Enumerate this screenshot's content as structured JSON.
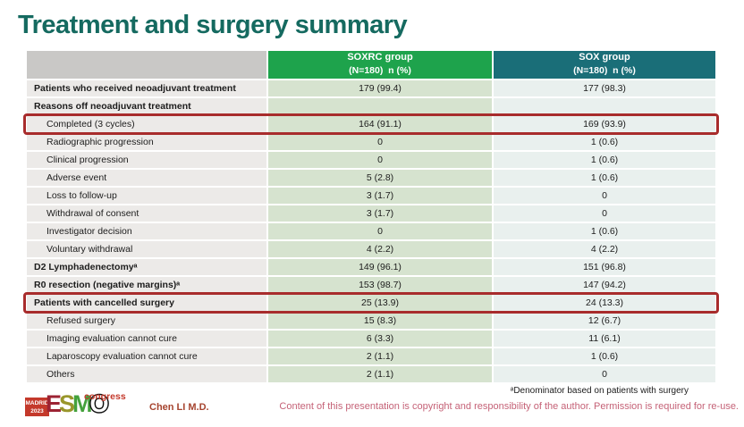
{
  "slide": {
    "title": "Treatment and surgery summary",
    "presenter": "Chen LI M.D.",
    "footnote": "ᵃDenominator based on patients with surgery",
    "copyright": "Content of this presentation is copyright and responsibility of the author. Permission is required for re-use."
  },
  "logo": {
    "badge_line1": "MADRID",
    "badge_line2": "2023",
    "letter_e": "E",
    "letter_s": "S",
    "letter_m": "M",
    "letter_o": "O",
    "congress": "congress"
  },
  "colors": {
    "title": "#156a60",
    "soxrc_header": "#1ea34c",
    "sox_header": "#1a6e78",
    "label_cell": "#eceae8",
    "soxrc_cell": "#d6e3cf",
    "sox_cell": "#e9f0ee",
    "highlight_border": "#a82c2c",
    "copyright_text": "#c56277",
    "presenter_text": "#a6442f"
  },
  "table": {
    "header": {
      "col2_line1": "SOXRC group",
      "col2_line2": "(N=180)  n (%)",
      "col3_line1": "SOX group",
      "col3_line2": "(N=180)  n (%)"
    },
    "rows": [
      {
        "label": "Patients who received neoadjuvant treatment",
        "bold": true,
        "indent": false,
        "soxrc": "179 (99.4)",
        "sox": "177 (98.3)",
        "highlight": false
      },
      {
        "label": "Reasons off neoadjuvant treatment",
        "bold": true,
        "indent": false,
        "soxrc": "",
        "sox": "",
        "highlight": false
      },
      {
        "label": "Completed (3 cycles)",
        "bold": false,
        "indent": true,
        "soxrc": "164 (91.1)",
        "sox": "169 (93.9)",
        "highlight": true
      },
      {
        "label": "Radiographic progression",
        "bold": false,
        "indent": true,
        "soxrc": "0",
        "sox": "1 (0.6)",
        "highlight": false
      },
      {
        "label": "Clinical progression",
        "bold": false,
        "indent": true,
        "soxrc": "0",
        "sox": "1 (0.6)",
        "highlight": false
      },
      {
        "label": "Adverse event",
        "bold": false,
        "indent": true,
        "soxrc": "5 (2.8)",
        "sox": "1 (0.6)",
        "highlight": false
      },
      {
        "label": "Loss to follow-up",
        "bold": false,
        "indent": true,
        "soxrc": "3 (1.7)",
        "sox": "0",
        "highlight": false
      },
      {
        "label": "Withdrawal of consent",
        "bold": false,
        "indent": true,
        "soxrc": "3 (1.7)",
        "sox": "0",
        "highlight": false
      },
      {
        "label": "Investigator decision",
        "bold": false,
        "indent": true,
        "soxrc": "0",
        "sox": "1 (0.6)",
        "highlight": false
      },
      {
        "label": "Voluntary withdrawal",
        "bold": false,
        "indent": true,
        "soxrc": "4 (2.2)",
        "sox": "4 (2.2)",
        "highlight": false
      },
      {
        "label": "D2 Lymphadenectomyᵃ",
        "bold": true,
        "indent": false,
        "soxrc": "149 (96.1)",
        "sox": "151 (96.8)",
        "highlight": false
      },
      {
        "label": "R0 resection (negative margins)ᵃ",
        "bold": true,
        "indent": false,
        "soxrc": "153 (98.7)",
        "sox": "147 (94.2)",
        "highlight": false
      },
      {
        "label": "Patients with cancelled surgery",
        "bold": true,
        "indent": false,
        "soxrc": "25 (13.9)",
        "sox": "24 (13.3)",
        "highlight": true
      },
      {
        "label": "Refused surgery",
        "bold": false,
        "indent": true,
        "soxrc": "15 (8.3)",
        "sox": "12 (6.7)",
        "highlight": false
      },
      {
        "label": "Imaging evaluation cannot cure",
        "bold": false,
        "indent": true,
        "soxrc": "6 (3.3)",
        "sox": "11 (6.1)",
        "highlight": false
      },
      {
        "label": "Laparoscopy evaluation cannot cure",
        "bold": false,
        "indent": true,
        "soxrc": "2 (1.1)",
        "sox": "1 (0.6)",
        "highlight": false
      },
      {
        "label": "Others",
        "bold": false,
        "indent": true,
        "soxrc": "2 (1.1)",
        "sox": "0",
        "highlight": false
      }
    ]
  }
}
